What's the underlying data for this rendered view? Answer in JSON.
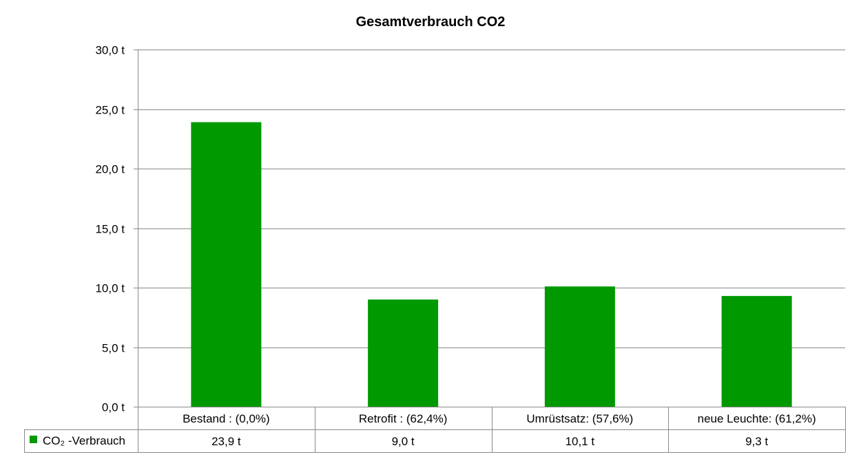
{
  "chart_data": {
    "type": "bar",
    "title": "Gesamtverbrauch CO2",
    "categories": [
      "Bestand : (0,0%)",
      "Retrofit : (62,4%)",
      "Umrüstsatz: (57,6%)",
      "neue Leuchte: (61,2%)"
    ],
    "series": [
      {
        "name": "CO₂ -Verbrauch",
        "values": [
          23.9,
          9.0,
          10.1,
          9.3
        ],
        "value_labels": [
          "23,9 t",
          "9,0 t",
          "10,1 t",
          "9,3 t"
        ],
        "color": "#009900"
      }
    ],
    "ylim": [
      0,
      30
    ],
    "yticks": [
      0,
      5,
      10,
      15,
      20,
      25,
      30
    ],
    "ytick_labels": [
      "0,0 t",
      "5,0 t",
      "10,0 t",
      "15,0 t",
      "20,0 t",
      "25,0 t",
      "30,0 t"
    ],
    "grid": true,
    "data_table": true,
    "gridline_color": "#888888"
  }
}
